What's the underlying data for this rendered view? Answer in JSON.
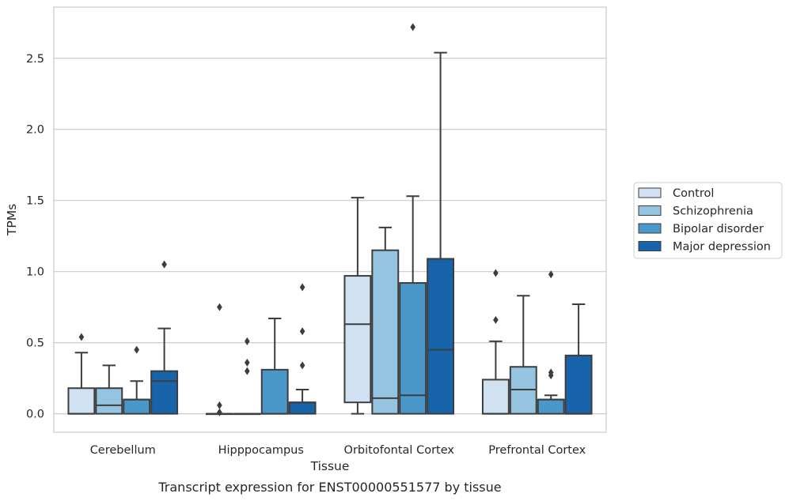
{
  "chart_data": {
    "type": "boxplot",
    "title": "",
    "xlabel": "Tissue",
    "ylabel": "TPMs",
    "caption": "Transcript expression for ENST00000551577 by tissue",
    "ylim": [
      -0.13,
      2.86
    ],
    "yticks": [
      0.0,
      0.5,
      1.0,
      1.5,
      2.0,
      2.5
    ],
    "ytick_labels": [
      "0.0",
      "0.5",
      "1.0",
      "1.5",
      "2.0",
      "2.5"
    ],
    "grid": "horizontal",
    "legend_position": "right",
    "categories": [
      "Cerebellum",
      "Hipppocampus",
      "Orbitofontal Cortex",
      "Prefrontal Cortex"
    ],
    "series": [
      {
        "name": "Control",
        "color": "#d0e1f2",
        "boxes": [
          {
            "q1": 0.0,
            "median": 0.0,
            "q3": 0.18,
            "whisker_low": 0.0,
            "whisker_high": 0.43,
            "outliers": [
              0.54
            ]
          },
          {
            "q1": 0.0,
            "median": 0.0,
            "q3": 0.0,
            "whisker_low": 0.0,
            "whisker_high": 0.0,
            "outliers": [
              0.01,
              0.06,
              0.75
            ]
          },
          {
            "q1": 0.08,
            "median": 0.63,
            "q3": 0.97,
            "whisker_low": 0.0,
            "whisker_high": 1.52,
            "outliers": []
          },
          {
            "q1": 0.0,
            "median": 0.0,
            "q3": 0.24,
            "whisker_low": 0.0,
            "whisker_high": 0.51,
            "outliers": [
              0.66,
              0.99
            ]
          }
        ]
      },
      {
        "name": "Schizophrenia",
        "color": "#94c4df",
        "boxes": [
          {
            "q1": 0.0,
            "median": 0.06,
            "q3": 0.18,
            "whisker_low": 0.0,
            "whisker_high": 0.34,
            "outliers": []
          },
          {
            "q1": 0.0,
            "median": 0.0,
            "q3": 0.0,
            "whisker_low": 0.0,
            "whisker_high": 0.0,
            "outliers": [
              0.3,
              0.36,
              0.51
            ]
          },
          {
            "q1": 0.0,
            "median": 0.11,
            "q3": 1.15,
            "whisker_low": 0.0,
            "whisker_high": 1.31,
            "outliers": []
          },
          {
            "q1": 0.0,
            "median": 0.17,
            "q3": 0.33,
            "whisker_low": 0.0,
            "whisker_high": 0.83,
            "outliers": []
          }
        ]
      },
      {
        "name": "Bipolar disorder",
        "color": "#4a98c9",
        "boxes": [
          {
            "q1": 0.0,
            "median": 0.1,
            "q3": 0.1,
            "whisker_low": 0.0,
            "whisker_high": 0.23,
            "outliers": [
              0.45
            ]
          },
          {
            "q1": 0.0,
            "median": 0.0,
            "q3": 0.31,
            "whisker_low": 0.0,
            "whisker_high": 0.67,
            "outliers": []
          },
          {
            "q1": 0.0,
            "median": 0.13,
            "q3": 0.92,
            "whisker_low": 0.0,
            "whisker_high": 1.53,
            "outliers": [
              2.72
            ]
          },
          {
            "q1": 0.0,
            "median": 0.1,
            "q3": 0.1,
            "whisker_low": 0.0,
            "whisker_high": 0.13,
            "outliers": [
              0.27,
              0.29,
              0.98
            ]
          }
        ]
      },
      {
        "name": "Major depression",
        "color": "#1764ab",
        "boxes": [
          {
            "q1": 0.0,
            "median": 0.23,
            "q3": 0.3,
            "whisker_low": 0.0,
            "whisker_high": 0.6,
            "outliers": [
              1.05
            ]
          },
          {
            "q1": 0.0,
            "median": 0.08,
            "q3": 0.08,
            "whisker_low": 0.0,
            "whisker_high": 0.17,
            "outliers": [
              0.34,
              0.58,
              0.89
            ]
          },
          {
            "q1": 0.0,
            "median": 0.45,
            "q3": 1.09,
            "whisker_low": 0.0,
            "whisker_high": 2.54,
            "outliers": []
          },
          {
            "q1": 0.0,
            "median": 0.0,
            "q3": 0.41,
            "whisker_low": 0.0,
            "whisker_high": 0.77,
            "outliers": []
          }
        ]
      }
    ]
  }
}
